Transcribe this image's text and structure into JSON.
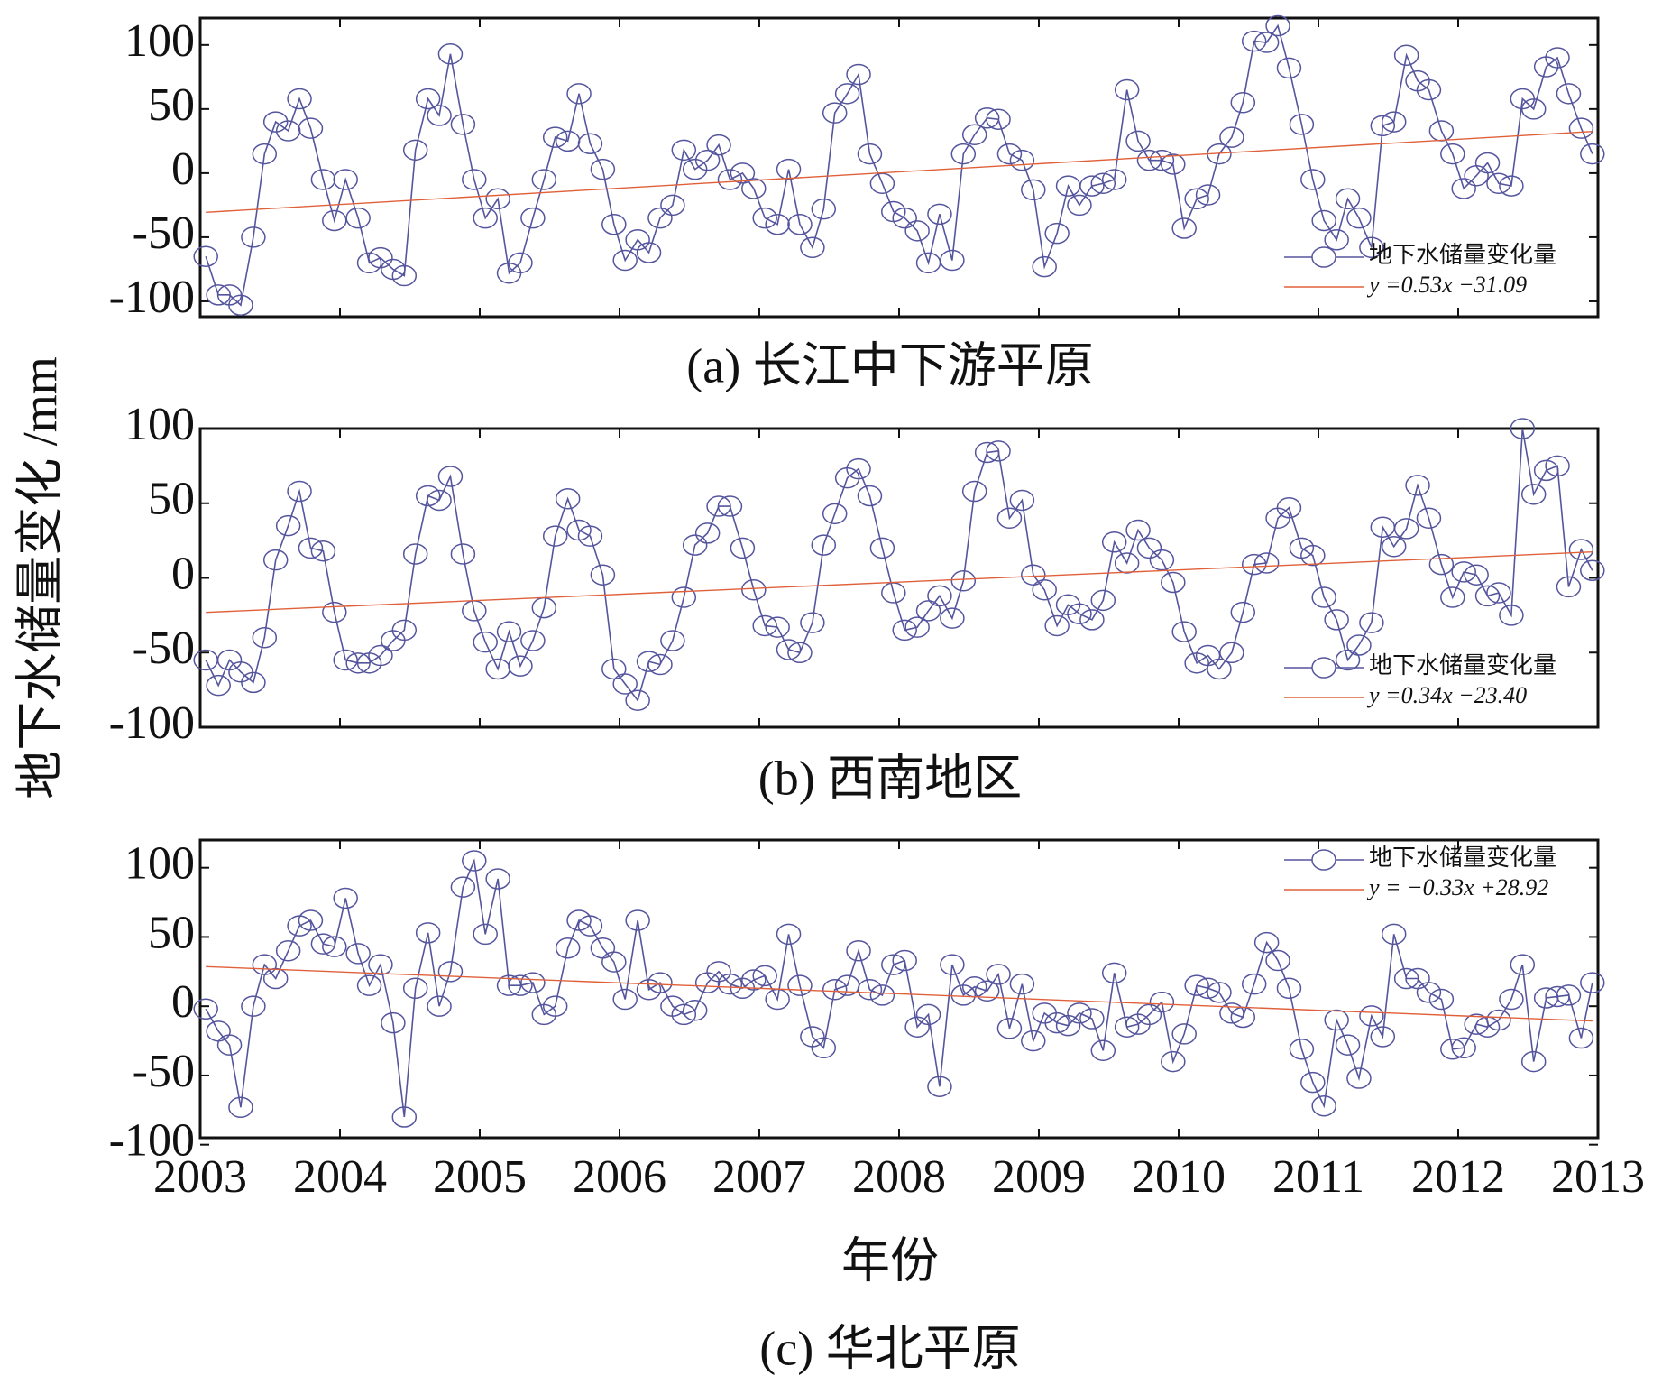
{
  "chart_data": [
    {
      "type": "line",
      "title": "(a) 长江中下游平原",
      "xlim": [
        2003,
        2013
      ],
      "ylim": [
        -112,
        121
      ],
      "xticks": [
        2003,
        2004,
        2005,
        2006,
        2007,
        2008,
        2009,
        2010,
        2011,
        2012,
        2013
      ],
      "yticks": [
        -100,
        -50,
        0,
        50,
        100
      ],
      "legend": "lower right",
      "x": [
        2003.04,
        2003.13,
        2003.21,
        2003.29,
        2003.38,
        2003.46,
        2003.54,
        2003.63,
        2003.71,
        2003.79,
        2003.88,
        2003.96,
        2004.04,
        2004.13,
        2004.21,
        2004.29,
        2004.38,
        2004.46,
        2004.54,
        2004.63,
        2004.71,
        2004.79,
        2004.88,
        2004.96,
        2005.04,
        2005.13,
        2005.21,
        2005.29,
        2005.38,
        2005.46,
        2005.54,
        2005.63,
        2005.71,
        2005.79,
        2005.88,
        2005.96,
        2006.04,
        2006.13,
        2006.21,
        2006.29,
        2006.38,
        2006.46,
        2006.54,
        2006.63,
        2006.71,
        2006.79,
        2006.88,
        2006.96,
        2007.04,
        2007.13,
        2007.21,
        2007.29,
        2007.38,
        2007.46,
        2007.54,
        2007.63,
        2007.71,
        2007.79,
        2007.88,
        2007.96,
        2008.04,
        2008.13,
        2008.21,
        2008.29,
        2008.38,
        2008.46,
        2008.54,
        2008.63,
        2008.71,
        2008.79,
        2008.88,
        2008.96,
        2009.04,
        2009.13,
        2009.21,
        2009.29,
        2009.38,
        2009.46,
        2009.54,
        2009.63,
        2009.71,
        2009.79,
        2009.88,
        2009.96,
        2010.04,
        2010.13,
        2010.21,
        2010.29,
        2010.38,
        2010.46,
        2010.54,
        2010.63,
        2010.71,
        2010.79,
        2010.88,
        2010.96,
        2011.04,
        2011.13,
        2011.21,
        2011.29,
        2011.38,
        2011.46,
        2011.54,
        2011.63,
        2011.71,
        2011.79,
        2011.88,
        2011.96,
        2012.04,
        2012.13,
        2012.21,
        2012.29,
        2012.38,
        2012.46,
        2012.54,
        2012.63,
        2012.71,
        2012.79,
        2012.88,
        2012.96
      ],
      "series": [
        {
          "name": "地下水储量变化量",
          "color": "#55559e",
          "marker": "circle",
          "values": [
            -65,
            -95,
            -95,
            -103,
            -50,
            15,
            40,
            33,
            58,
            35,
            -5,
            -37,
            -5,
            -35,
            -70,
            -66,
            -75,
            -80,
            18,
            58,
            45,
            93,
            38,
            -5,
            -35,
            -20,
            -78,
            -70,
            -35,
            -5,
            28,
            25,
            62,
            23,
            3,
            -40,
            -68,
            -52,
            -62,
            -35,
            -25,
            18,
            3,
            10,
            22,
            -5,
            0,
            -12,
            -35,
            -40,
            3,
            -40,
            -58,
            -28,
            47,
            62,
            77,
            15,
            -8,
            -30,
            -35,
            -45,
            -70,
            -32,
            -68,
            15,
            30,
            43,
            42,
            15,
            10,
            -13,
            -73,
            -47,
            -10,
            -25,
            -10,
            -8,
            -5,
            65,
            25,
            10,
            10,
            7,
            -43,
            -20,
            -17,
            15,
            28,
            55,
            103,
            102,
            115,
            82,
            38,
            -5,
            -37,
            -52,
            -20,
            -35,
            -58,
            37,
            40,
            92,
            72,
            65,
            33,
            15,
            -12,
            -2,
            8,
            -8,
            -10,
            58,
            50,
            83,
            90,
            62,
            35,
            15
          ]
        },
        {
          "name": "y =0.53x −31.09",
          "color": "#e0603a",
          "x": [
            2003.04,
            2012.96
          ],
          "values": [
            -30.56,
            32.51
          ]
        }
      ]
    },
    {
      "type": "line",
      "title": "(b) 西南地区",
      "ylabel": "地下水储量变化 /mm",
      "xlim": [
        2003,
        2013
      ],
      "ylim": [
        -100,
        100
      ],
      "xticks": [
        2003,
        2004,
        2005,
        2006,
        2007,
        2008,
        2009,
        2010,
        2011,
        2012,
        2013
      ],
      "yticks": [
        -100,
        -50,
        0,
        50,
        100
      ],
      "legend": "lower right",
      "x": [
        2003.04,
        2003.13,
        2003.21,
        2003.29,
        2003.38,
        2003.46,
        2003.54,
        2003.63,
        2003.71,
        2003.79,
        2003.88,
        2003.96,
        2004.04,
        2004.13,
        2004.21,
        2004.29,
        2004.38,
        2004.46,
        2004.54,
        2004.63,
        2004.71,
        2004.79,
        2004.88,
        2004.96,
        2005.04,
        2005.13,
        2005.21,
        2005.29,
        2005.38,
        2005.46,
        2005.54,
        2005.63,
        2005.71,
        2005.79,
        2005.88,
        2005.96,
        2006.04,
        2006.13,
        2006.21,
        2006.29,
        2006.38,
        2006.46,
        2006.54,
        2006.63,
        2006.71,
        2006.79,
        2006.88,
        2006.96,
        2007.04,
        2007.13,
        2007.21,
        2007.29,
        2007.38,
        2007.46,
        2007.54,
        2007.63,
        2007.71,
        2007.79,
        2007.88,
        2007.96,
        2008.04,
        2008.13,
        2008.21,
        2008.29,
        2008.38,
        2008.46,
        2008.54,
        2008.63,
        2008.71,
        2008.79,
        2008.88,
        2008.96,
        2009.04,
        2009.13,
        2009.21,
        2009.29,
        2009.38,
        2009.46,
        2009.54,
        2009.63,
        2009.71,
        2009.79,
        2009.88,
        2009.96,
        2010.04,
        2010.13,
        2010.21,
        2010.29,
        2010.38,
        2010.46,
        2010.54,
        2010.63,
        2010.71,
        2010.79,
        2010.88,
        2010.96,
        2011.04,
        2011.13,
        2011.21,
        2011.29,
        2011.38,
        2011.46,
        2011.54,
        2011.63,
        2011.71,
        2011.79,
        2011.88,
        2011.96,
        2012.04,
        2012.13,
        2012.21,
        2012.29,
        2012.38,
        2012.46,
        2012.54,
        2012.63,
        2012.71,
        2012.79,
        2012.88,
        2012.96
      ],
      "series": [
        {
          "name": "地下水储量变化量",
          "color": "#55559e",
          "marker": "circle",
          "values": [
            -55,
            -72,
            -55,
            -63,
            -70,
            -40,
            12,
            35,
            58,
            20,
            18,
            -23,
            -55,
            -57,
            -57,
            -52,
            -42,
            -35,
            16,
            55,
            52,
            68,
            16,
            -22,
            -43,
            -61,
            -36,
            -59,
            -42,
            -20,
            28,
            53,
            32,
            28,
            2,
            -61,
            -71,
            -82,
            -56,
            -58,
            -42,
            -13,
            22,
            30,
            48,
            48,
            20,
            -8,
            -32,
            -33,
            -48,
            -50,
            -30,
            22,
            43,
            67,
            73,
            55,
            20,
            -10,
            -35,
            -33,
            -22,
            -12,
            -27,
            -2,
            58,
            84,
            85,
            40,
            52,
            2,
            -8,
            -32,
            -18,
            -24,
            -28,
            -15,
            24,
            10,
            32,
            20,
            12,
            -3,
            -36,
            -57,
            -52,
            -61,
            -50,
            -23,
            9,
            10,
            40,
            47,
            20,
            15,
            -13,
            -28,
            -55,
            -45,
            -30,
            34,
            21,
            33,
            62,
            40,
            9,
            -13,
            4,
            2,
            -12,
            -10,
            -25,
            100,
            56,
            72,
            75,
            -6,
            19,
            5
          ]
        },
        {
          "name": "y =0.34x −23.40",
          "color": "#e0603a",
          "x": [
            2003.04,
            2012.96
          ],
          "values": [
            -23.06,
            17.4
          ]
        }
      ]
    },
    {
      "type": "line",
      "title": "(c) 华北平原",
      "xlabel": "年份",
      "xlim": [
        2003,
        2013
      ],
      "ylim": [
        -95,
        120
      ],
      "xticks": [
        2003,
        2004,
        2005,
        2006,
        2007,
        2008,
        2009,
        2010,
        2011,
        2012,
        2013
      ],
      "yticks": [
        -100,
        -50,
        0,
        50,
        100
      ],
      "legend": "upper right",
      "x": [
        2003.04,
        2003.13,
        2003.21,
        2003.29,
        2003.38,
        2003.46,
        2003.54,
        2003.63,
        2003.71,
        2003.79,
        2003.88,
        2003.96,
        2004.04,
        2004.13,
        2004.21,
        2004.29,
        2004.38,
        2004.46,
        2004.54,
        2004.63,
        2004.71,
        2004.79,
        2004.88,
        2004.96,
        2005.04,
        2005.13,
        2005.21,
        2005.29,
        2005.38,
        2005.46,
        2005.54,
        2005.63,
        2005.71,
        2005.79,
        2005.88,
        2005.96,
        2006.04,
        2006.13,
        2006.21,
        2006.29,
        2006.38,
        2006.46,
        2006.54,
        2006.63,
        2006.71,
        2006.79,
        2006.88,
        2006.96,
        2007.04,
        2007.13,
        2007.21,
        2007.29,
        2007.38,
        2007.46,
        2007.54,
        2007.63,
        2007.71,
        2007.79,
        2007.88,
        2007.96,
        2008.04,
        2008.13,
        2008.21,
        2008.29,
        2008.38,
        2008.46,
        2008.54,
        2008.63,
        2008.71,
        2008.79,
        2008.88,
        2008.96,
        2009.04,
        2009.13,
        2009.21,
        2009.29,
        2009.38,
        2009.46,
        2009.54,
        2009.63,
        2009.71,
        2009.79,
        2009.88,
        2009.96,
        2010.04,
        2010.13,
        2010.21,
        2010.29,
        2010.38,
        2010.46,
        2010.54,
        2010.63,
        2010.71,
        2010.79,
        2010.88,
        2010.96,
        2011.04,
        2011.13,
        2011.21,
        2011.29,
        2011.38,
        2011.46,
        2011.54,
        2011.63,
        2011.71,
        2011.79,
        2011.88,
        2011.96,
        2012.04,
        2012.13,
        2012.21,
        2012.29,
        2012.38,
        2012.46,
        2012.54,
        2012.63,
        2012.71,
        2012.79,
        2012.88,
        2012.96
      ],
      "series": [
        {
          "name": "地下水储量变化量",
          "color": "#55559e",
          "marker": "circle",
          "values": [
            -2,
            -18,
            -28,
            -73,
            0,
            30,
            20,
            40,
            58,
            62,
            45,
            43,
            78,
            38,
            15,
            30,
            -12,
            -80,
            13,
            53,
            0,
            25,
            86,
            105,
            52,
            92,
            15,
            15,
            17,
            -6,
            0,
            42,
            62,
            58,
            42,
            32,
            5,
            62,
            12,
            17,
            0,
            -6,
            -3,
            17,
            25,
            16,
            13,
            19,
            22,
            5,
            52,
            15,
            -22,
            -30,
            12,
            15,
            40,
            12,
            8,
            30,
            33,
            -15,
            -6,
            -58,
            30,
            8,
            14,
            11,
            23,
            -16,
            16,
            -25,
            -5,
            -12,
            -14,
            -5,
            -9,
            -32,
            24,
            -15,
            -13,
            -6,
            3,
            -40,
            -20,
            15,
            13,
            10,
            -5,
            -8,
            16,
            46,
            33,
            13,
            -31,
            -55,
            -72,
            -10,
            -28,
            -52,
            -7,
            -22,
            52,
            20,
            20,
            10,
            5,
            -31,
            -30,
            -13,
            -15,
            -10,
            5,
            30,
            -40,
            6,
            7,
            8,
            -23,
            17
          ]
        },
        {
          "name": "y = −0.33x +28.92",
          "color": "#e0603a",
          "x": [
            2003.04,
            2012.96
          ],
          "values": [
            28.59,
            -10.68
          ]
        }
      ]
    }
  ]
}
